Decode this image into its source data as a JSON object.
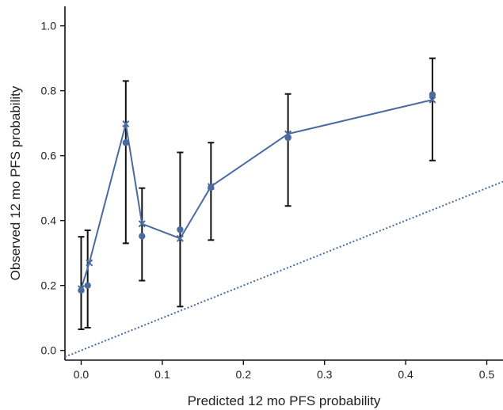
{
  "chart_data": {
    "type": "scatter",
    "xlabel": "Predicted 12 mo PFS probability",
    "ylabel": "Observed 12 mo PFS probability",
    "xlim": [
      -0.02,
      0.52
    ],
    "ylim": [
      -0.03,
      1.06
    ],
    "x_ticks": [
      0.0,
      0.1,
      0.2,
      0.3,
      0.4,
      0.5
    ],
    "x_tick_labels": [
      "0.0",
      "0.1",
      "0.2",
      "0.3",
      "0.4",
      "0.5"
    ],
    "y_ticks": [
      0.0,
      0.2,
      0.4,
      0.6,
      0.8,
      1.0
    ],
    "y_tick_labels": [
      "0.0",
      "0.2",
      "0.4",
      "0.6",
      "0.8",
      "1.0"
    ],
    "grid": false,
    "colors": {
      "series": "#4a6aa0",
      "error_bars": "#111111",
      "reference": "#4a6aa0",
      "axis": "#111111"
    },
    "series": [
      {
        "marker": "circle",
        "x": [
          0.0,
          0.008,
          0.055,
          0.075,
          0.122,
          0.16,
          0.255,
          0.433
        ],
        "y": [
          0.185,
          0.2,
          0.64,
          0.352,
          0.372,
          0.502,
          0.655,
          0.788
        ],
        "error_low": [
          0.065,
          0.07,
          0.33,
          0.215,
          0.135,
          0.34,
          0.445,
          0.585
        ],
        "error_high": [
          0.35,
          0.37,
          0.83,
          0.5,
          0.61,
          0.64,
          0.79,
          0.9
        ]
      },
      {
        "marker": "x",
        "line": true,
        "x": [
          0.0,
          0.01,
          0.055,
          0.075,
          0.122,
          0.16,
          0.255,
          0.433
        ],
        "y": [
          0.19,
          0.27,
          0.698,
          0.39,
          0.345,
          0.505,
          0.667,
          0.772
        ]
      },
      {
        "line_style": "dotted",
        "x": [
          -0.02,
          0.52
        ],
        "y": [
          -0.02,
          0.52
        ]
      }
    ]
  }
}
